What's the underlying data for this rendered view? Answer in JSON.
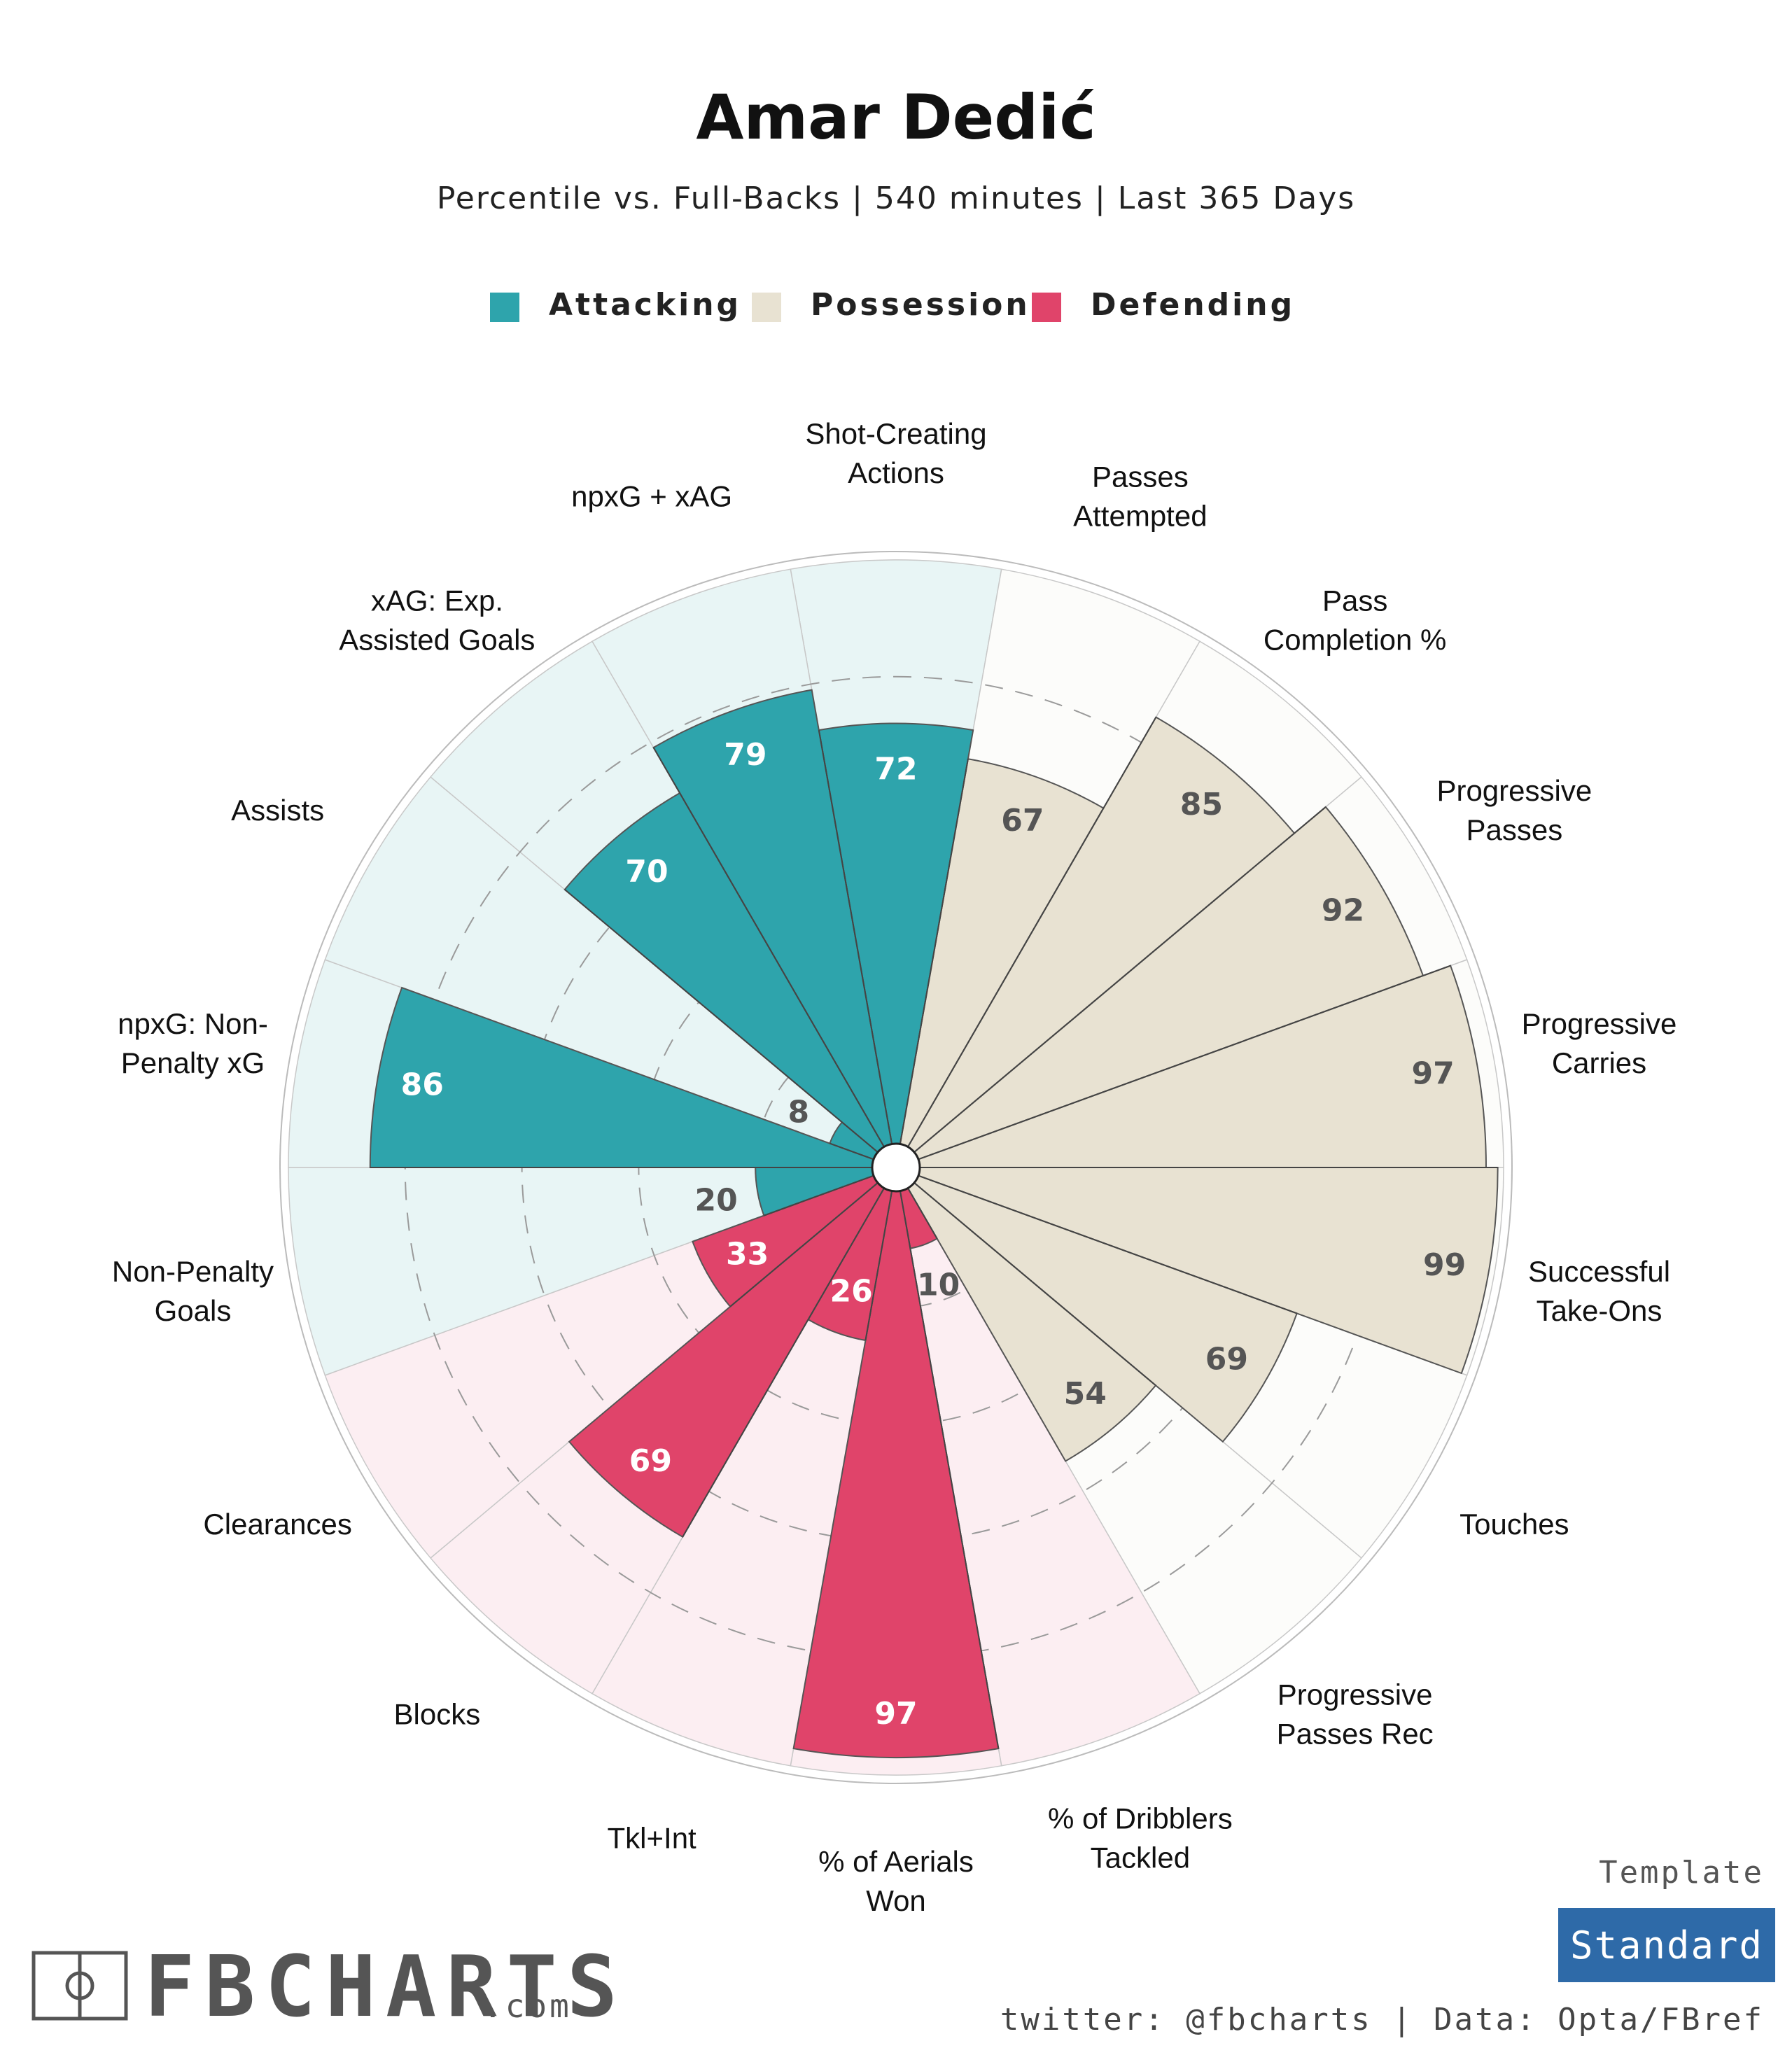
{
  "header": {
    "title": "Amar Dedić",
    "subtitle": "Percentile vs. Full-Backs | 540 minutes | Last 365 Days"
  },
  "legend": [
    {
      "label": "Attacking",
      "color": "#2ea4ac"
    },
    {
      "label": "Possession",
      "color": "#e8e2d2"
    },
    {
      "label": "Defending",
      "color": "#e0446a"
    }
  ],
  "chart_data": {
    "type": "radial-bar",
    "range": [
      0,
      100
    ],
    "ring_levels": [
      20,
      40,
      60,
      80
    ],
    "groups": {
      "Attacking": {
        "fill": "#2ea4ac",
        "background": "#e8f5f5",
        "value_color": "#ffffff",
        "low_value_color": "#555555"
      },
      "Possession": {
        "fill": "#e8e2d2",
        "background": "#fcfcfa",
        "value_color": "#555555",
        "low_value_color": "#555555"
      },
      "Defending": {
        "fill": "#e0446a",
        "background": "#fceef2",
        "value_color": "#ffffff",
        "low_value_color": "#555555"
      }
    },
    "categories": [
      {
        "label": "Shot-Creating\nActions",
        "value": 72,
        "group": "Attacking"
      },
      {
        "label": "Passes\nAttempted",
        "value": 67,
        "group": "Possession"
      },
      {
        "label": "Pass\nCompletion %",
        "value": 85,
        "group": "Possession"
      },
      {
        "label": "Progressive\nPasses",
        "value": 92,
        "group": "Possession"
      },
      {
        "label": "Progressive\nCarries",
        "value": 97,
        "group": "Possession"
      },
      {
        "label": "Successful\nTake-Ons",
        "value": 99,
        "group": "Possession"
      },
      {
        "label": "Touches",
        "value": 69,
        "group": "Possession"
      },
      {
        "label": "Progressive\nPasses Rec",
        "value": 54,
        "group": "Possession"
      },
      {
        "label": "% of Dribblers\nTackled",
        "value": 10,
        "group": "Defending"
      },
      {
        "label": "% of Aerials\nWon",
        "value": 97,
        "group": "Defending"
      },
      {
        "label": "Tkl+Int",
        "value": 26,
        "group": "Defending"
      },
      {
        "label": "Blocks",
        "value": 69,
        "group": "Defending"
      },
      {
        "label": "Clearances",
        "value": 33,
        "group": "Defending"
      },
      {
        "label": "Non-Penalty\nGoals",
        "value": 20,
        "group": "Attacking"
      },
      {
        "label": "npxG: Non-\nPenalty xG",
        "value": 86,
        "group": "Attacking"
      },
      {
        "label": "Assists",
        "value": 8,
        "group": "Attacking"
      },
      {
        "label": "xAG: Exp.\nAssisted Goals",
        "value": 70,
        "group": "Attacking"
      },
      {
        "label": "npxG + xAG",
        "value": 79,
        "group": "Attacking"
      }
    ]
  },
  "footer": {
    "logo_main": "FBCHARTS",
    "logo_suffix": ".com",
    "template_label": "Template",
    "template_value": "Standard",
    "template_color": "#2e6aa8",
    "credits": "twitter: @fbcharts | Data: Opta/FBref"
  }
}
